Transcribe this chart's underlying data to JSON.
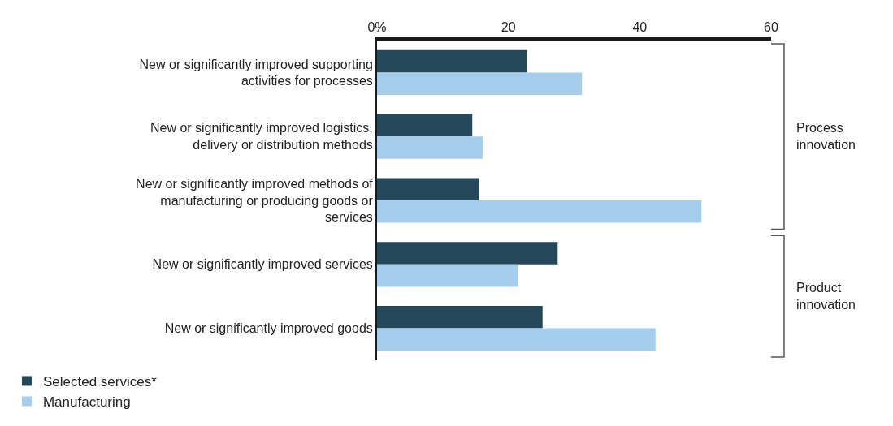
{
  "chart_data": {
    "type": "bar",
    "orientation": "horizontal",
    "categories": [
      "New or significantly improved supporting activities for processes",
      "New or significantly improved logistics, delivery or distribution methods",
      "New or significantly improved methods of manufacturing or producing goods or services",
      "New or significantly improved services",
      "New or significantly improved goods"
    ],
    "series": [
      {
        "name": "Selected services*",
        "color": "#24475a",
        "values": [
          22.8,
          14.5,
          15.5,
          27.5,
          25.2
        ]
      },
      {
        "name": "Manufacturing",
        "color": "#a6cdec",
        "values": [
          31.2,
          16.1,
          49.4,
          21.5,
          42.4
        ]
      }
    ],
    "xlim": [
      0,
      60
    ],
    "xticks": [
      {
        "value": 0,
        "label": "0%"
      },
      20,
      40,
      60
    ],
    "annotations": [
      "Process innovation",
      "Product innovation"
    ],
    "grid": false,
    "legend": "bottom left"
  }
}
